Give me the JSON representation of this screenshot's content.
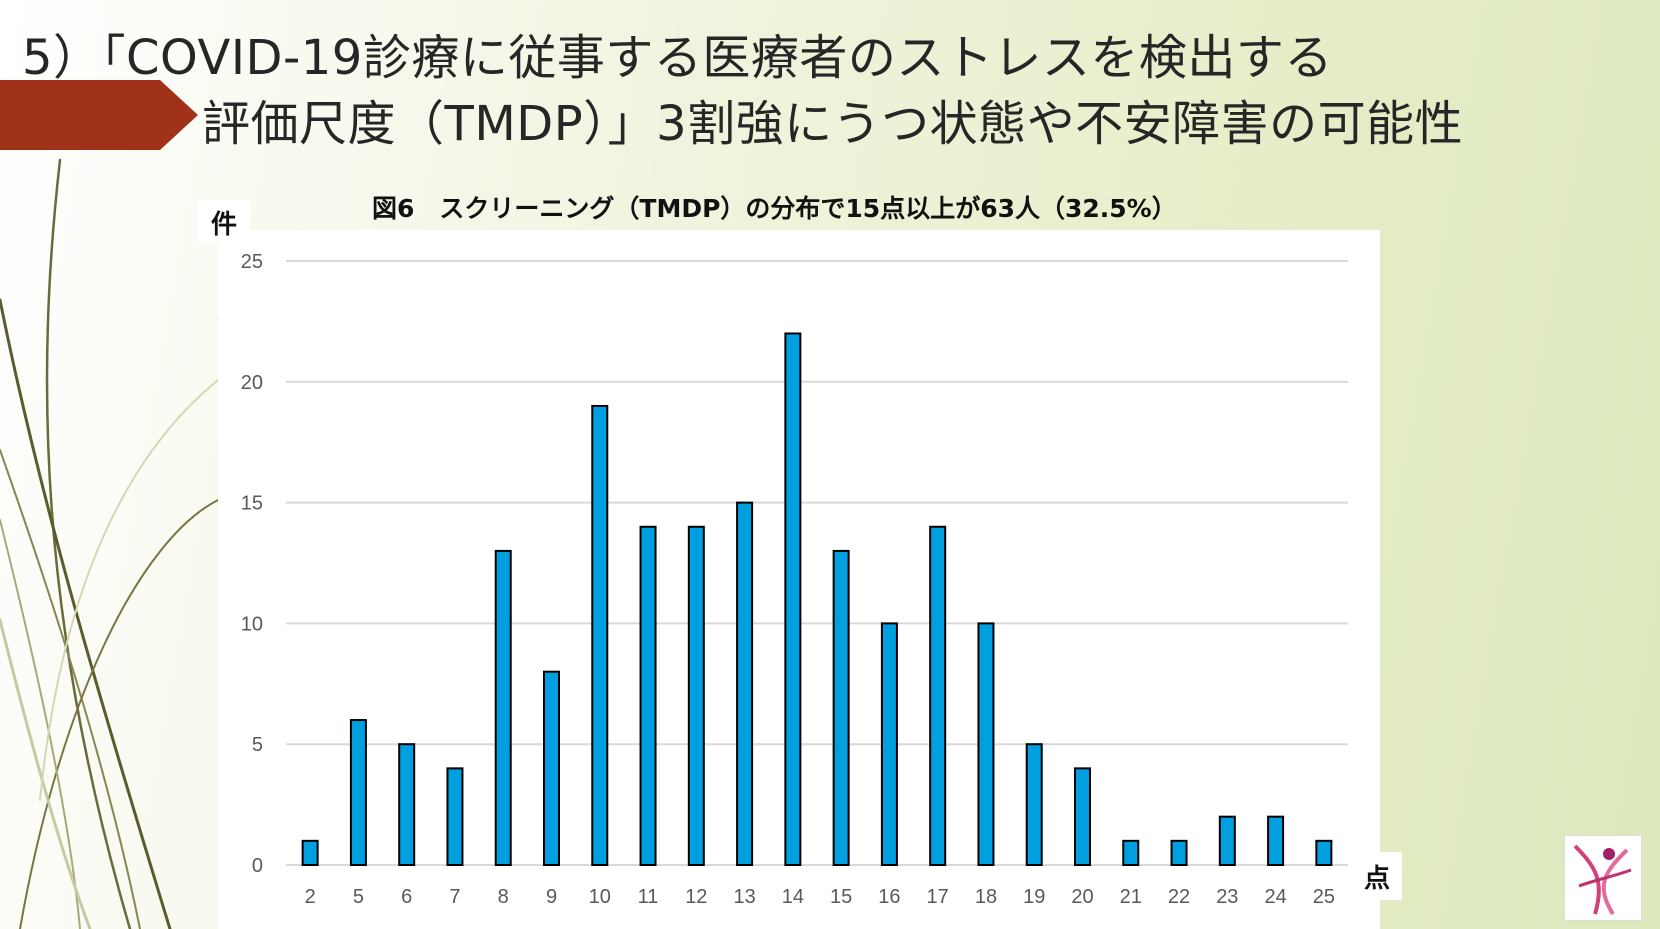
{
  "slide": {
    "title_line1": "5）「COVID-19診療に従事する医療者のストレスを検出する",
    "title_line2": "評価尺度（TMDP）」3割強にうつ状態や不安障害の可能性",
    "accent_color": "#a0321a",
    "logo_icon": "pink-dancing-figure-logo"
  },
  "chart_data": {
    "type": "bar",
    "title": "図6　スクリーニング（TMDP）の分布で15点以上が63人（32.5%）",
    "ylabel": "件",
    "xlabel": "点",
    "categories": [
      "2",
      "5",
      "6",
      "7",
      "8",
      "9",
      "10",
      "11",
      "12",
      "13",
      "14",
      "15",
      "16",
      "17",
      "18",
      "19",
      "20",
      "21",
      "22",
      "23",
      "24",
      "25"
    ],
    "values": [
      1,
      6,
      5,
      4,
      13,
      8,
      19,
      14,
      14,
      15,
      22,
      13,
      10,
      14,
      10,
      5,
      4,
      1,
      1,
      2,
      2,
      1
    ],
    "ylim": [
      0,
      25
    ],
    "yticks": [
      "0",
      "5",
      "10",
      "15",
      "20",
      "25"
    ],
    "grid": true,
    "bar_color": "#00a0e0"
  }
}
